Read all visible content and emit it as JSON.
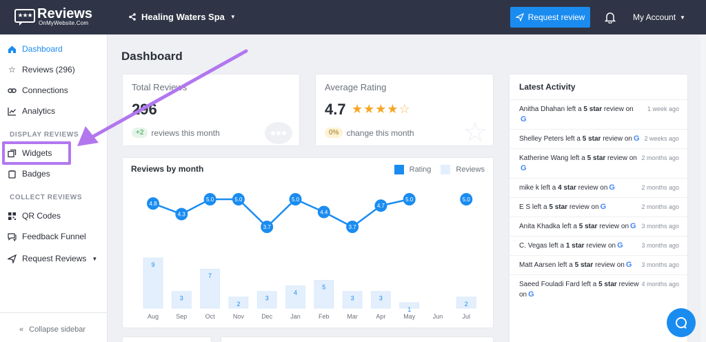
{
  "header": {
    "logo_title": "Reviews",
    "logo_sub": "OnMyWebsite.Com",
    "logo_stars": "★★★",
    "location": "Healing Waters Spa",
    "request_button": "Request review",
    "account": "My Account"
  },
  "sidebar": {
    "items": [
      {
        "label": "Dashboard",
        "icon": "home-icon"
      },
      {
        "label": "Reviews (296)",
        "icon": "star-icon"
      },
      {
        "label": "Connections",
        "icon": "link-icon"
      },
      {
        "label": "Analytics",
        "icon": "chart-icon"
      },
      {
        "label": "Widgets",
        "icon": "widgets-icon"
      },
      {
        "label": "Badges",
        "icon": "badge-icon"
      },
      {
        "label": "QR Codes",
        "icon": "qr-icon"
      },
      {
        "label": "Feedback Funnel",
        "icon": "feedback-icon"
      },
      {
        "label": "Request Reviews",
        "icon": "send-icon"
      }
    ],
    "section_display": "DISPLAY REVIEWS",
    "section_collect": "COLLECT REVIEWS",
    "collapse": "Collapse sidebar"
  },
  "main": {
    "title": "Dashboard",
    "total": {
      "label": "Total Reviews",
      "value": "296",
      "delta": "+2",
      "foot": "reviews this month"
    },
    "rating": {
      "label": "Average Rating",
      "value": "4.7",
      "delta": "0%",
      "foot": "change this month"
    }
  },
  "chart_data": {
    "type": "bar",
    "title": "Reviews by month",
    "categories": [
      "Aug",
      "Sep",
      "Oct",
      "Nov",
      "Dec",
      "Jan",
      "Feb",
      "Mar",
      "Apr",
      "May",
      "Jun",
      "Jul"
    ],
    "series": [
      {
        "name": "Rating",
        "type": "line",
        "values": [
          4.8,
          4.3,
          5.0,
          5.0,
          3.7,
          5.0,
          4.4,
          3.7,
          4.7,
          5.0,
          null,
          5.0
        ],
        "color": "#1a8cf0"
      },
      {
        "name": "Reviews",
        "type": "bar",
        "values": [
          9,
          3,
          7,
          2,
          3,
          4,
          5,
          3,
          3,
          1,
          0,
          2
        ],
        "color": "#e3effc"
      }
    ],
    "grid": false,
    "legend": "top-right"
  },
  "activity": {
    "title": "Latest Activity",
    "items": [
      {
        "name": "Anitha Dhahan",
        "pre": " left a ",
        "stars": "5 star",
        "post": " review on",
        "when": "1 week ago"
      },
      {
        "name": "Shelley Peters",
        "pre": " left a ",
        "stars": "5 star",
        "post": " review on",
        "when": "2 weeks ago"
      },
      {
        "name": "Katherine Wang",
        "pre": " left a ",
        "stars": "5 star",
        "post": " review on",
        "when": "2 months ago"
      },
      {
        "name": "mike k",
        "pre": " left a ",
        "stars": "4 star",
        "post": " review on",
        "when": "2 months ago"
      },
      {
        "name": "E S",
        "pre": " left a ",
        "stars": "5 star",
        "post": " review on",
        "when": "2 months ago"
      },
      {
        "name": "Anita Khadka",
        "pre": " left a ",
        "stars": "5 star",
        "post": " review on",
        "when": "3 months ago"
      },
      {
        "name": "C. Vegas",
        "pre": " left a ",
        "stars": "1 star",
        "post": " review on",
        "when": "3 months ago"
      },
      {
        "name": "Matt Aarsen",
        "pre": " left a ",
        "stars": "5 star",
        "post": " review on",
        "when": "3 months ago"
      },
      {
        "name": "Saeed Fouladi Fard",
        "pre": " left a ",
        "stars": "5 star",
        "post": " review on",
        "when": "4 months ago"
      }
    ],
    "google_glyph": "G"
  },
  "colors": {
    "accent": "#1a8cf0",
    "topbar": "#2f3546",
    "annotation": "#b277ef",
    "star": "#f5a623"
  }
}
